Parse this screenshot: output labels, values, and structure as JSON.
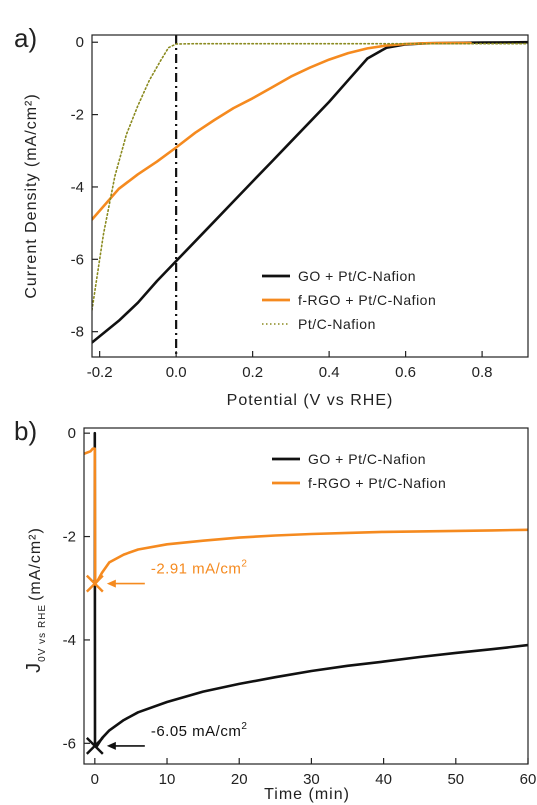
{
  "chart_data": [
    {
      "panel_label": "a)",
      "type": "line",
      "xlabel": "Potential (V vs RHE)",
      "ylabel": "Current Density (mA/cm²)",
      "xlim": [
        -0.22,
        0.92
      ],
      "ylim": [
        -8.7,
        0.2
      ],
      "xticks": [
        -0.2,
        0.0,
        0.2,
        0.4,
        0.6,
        0.8
      ],
      "xtick_labels": [
        "-0.2",
        "0.0",
        "0.2",
        "0.4",
        "0.6",
        "0.8"
      ],
      "yticks": [
        0,
        -2,
        -4,
        -6,
        -8
      ],
      "ytick_labels": [
        "0",
        "-2",
        "-4",
        "-6",
        "-8"
      ],
      "grid": false,
      "legend_position": "bottom-right",
      "vline": {
        "x": 0.0,
        "style": "dash-dot",
        "color": "#111111"
      },
      "series": [
        {
          "name": "GO + Pt/C-Nafion",
          "color": "#111111",
          "style": "solid",
          "x": [
            -0.22,
            -0.15,
            -0.1,
            -0.05,
            0.0,
            0.05,
            0.1,
            0.15,
            0.2,
            0.25,
            0.3,
            0.35,
            0.4,
            0.45,
            0.5,
            0.55,
            0.6,
            0.65,
            0.7,
            0.8,
            0.92
          ],
          "y": [
            -8.3,
            -7.7,
            -7.2,
            -6.6,
            -6.05,
            -5.5,
            -4.95,
            -4.4,
            -3.85,
            -3.3,
            -2.75,
            -2.2,
            -1.65,
            -1.05,
            -0.45,
            -0.15,
            -0.06,
            -0.03,
            -0.02,
            -0.01,
            0.0
          ]
        },
        {
          "name": "f-RGO + Pt/C-Nafion",
          "color": "#f58a1f",
          "style": "solid",
          "x": [
            -0.22,
            -0.15,
            -0.1,
            -0.05,
            0.0,
            0.05,
            0.1,
            0.15,
            0.2,
            0.25,
            0.3,
            0.35,
            0.4,
            0.45,
            0.5,
            0.55,
            0.6,
            0.65,
            0.7,
            0.77
          ],
          "y": [
            -4.9,
            -4.05,
            -3.65,
            -3.3,
            -2.91,
            -2.5,
            -2.15,
            -1.82,
            -1.55,
            -1.25,
            -0.95,
            -0.7,
            -0.48,
            -0.3,
            -0.17,
            -0.09,
            -0.05,
            -0.03,
            -0.02,
            -0.02
          ]
        },
        {
          "name": "Pt/C-Nafion",
          "color": "#8a8a1f",
          "style": "dotted",
          "x": [
            -0.22,
            -0.19,
            -0.16,
            -0.13,
            -0.1,
            -0.07,
            -0.04,
            -0.02,
            0.0,
            0.05,
            0.2,
            0.4,
            0.6,
            0.8,
            0.92
          ],
          "y": [
            -7.4,
            -5.3,
            -3.7,
            -2.55,
            -1.75,
            -1.05,
            -0.5,
            -0.15,
            -0.05,
            -0.04,
            -0.04,
            -0.04,
            -0.04,
            -0.04,
            -0.04
          ]
        }
      ]
    },
    {
      "panel_label": "b)",
      "type": "line",
      "xlabel": "Time (min)",
      "ylabel_main": "J",
      "ylabel_sub": "0V vs RHE",
      "ylabel_rest": "(mA/cm²)",
      "xlim": [
        -1.5,
        60
      ],
      "ylim": [
        -6.4,
        0.1
      ],
      "xticks": [
        0,
        10,
        20,
        30,
        40,
        50,
        60
      ],
      "xtick_labels": [
        "0",
        "10",
        "20",
        "30",
        "40",
        "50",
        "60"
      ],
      "yticks": [
        0,
        -2,
        -4,
        -6
      ],
      "ytick_labels": [
        "0",
        "-2",
        "-4",
        "-6"
      ],
      "grid": false,
      "legend_position": "top-right",
      "series": [
        {
          "name": "GO + Pt/C-Nafion",
          "color": "#111111",
          "style": "solid",
          "x": [
            0.0,
            0.02,
            0.3,
            1,
            2,
            4,
            6,
            10,
            15,
            20,
            25,
            30,
            35,
            40,
            45,
            50,
            55,
            60
          ],
          "y": [
            0.0,
            -6.05,
            -6.05,
            -5.9,
            -5.75,
            -5.55,
            -5.4,
            -5.2,
            -5.0,
            -4.85,
            -4.72,
            -4.6,
            -4.5,
            -4.42,
            -4.33,
            -4.25,
            -4.18,
            -4.1
          ]
        },
        {
          "name": "f-RGO + Pt/C-Nafion",
          "color": "#f58a1f",
          "style": "solid",
          "x": [
            -1.5,
            -0.6,
            -0.3,
            0.0,
            0.05,
            0.4,
            1,
            2,
            4,
            6,
            10,
            15,
            20,
            25,
            30,
            35,
            40,
            45,
            50,
            55,
            60
          ],
          "y": [
            -0.4,
            -0.35,
            -0.3,
            -0.3,
            -2.91,
            -2.85,
            -2.7,
            -2.5,
            -2.35,
            -2.25,
            -2.15,
            -2.08,
            -2.02,
            -1.98,
            -1.95,
            -1.93,
            -1.91,
            -1.9,
            -1.89,
            -1.88,
            -1.87
          ]
        }
      ],
      "annotations": [
        {
          "text": "-2.91 mA/cm",
          "sup": "2",
          "x": 0,
          "y": -2.91,
          "color": "#f58a1f"
        },
        {
          "text": "-6.05 mA/cm",
          "sup": "2",
          "x": 0,
          "y": -6.05,
          "color": "#111111"
        }
      ]
    }
  ]
}
